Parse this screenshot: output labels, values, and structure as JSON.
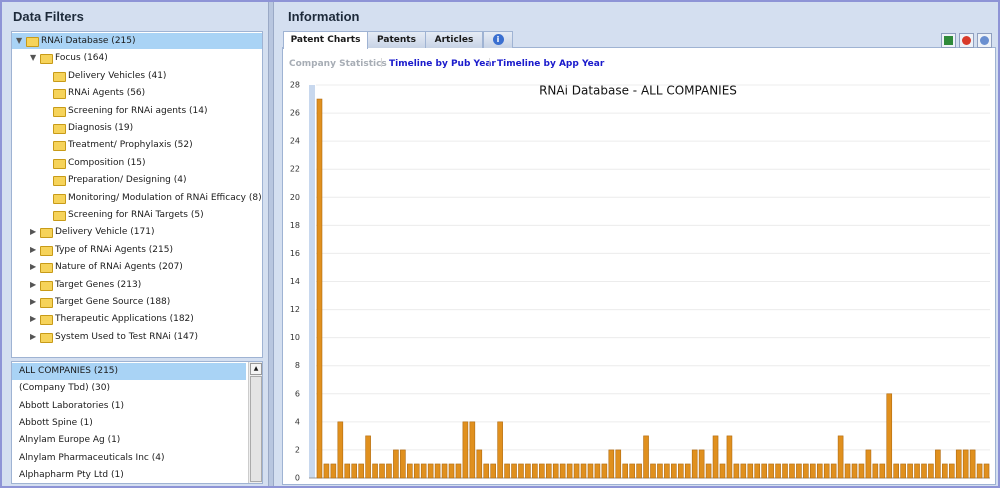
{
  "filters": {
    "title": "Data Filters",
    "tree": {
      "label": "RNAi Database (215)",
      "children": [
        {
          "label": "Focus (164)",
          "children": [
            {
              "label": "Delivery Vehicles (41)"
            },
            {
              "label": "RNAi Agents (56)"
            },
            {
              "label": "Screening for  RNAi agents (14)"
            },
            {
              "label": "Diagnosis (19)"
            },
            {
              "label": "Treatment/ Prophylaxis (52)"
            },
            {
              "label": "Composition (15)"
            },
            {
              "label": "Preparation/ Designing (4)"
            },
            {
              "label": "Monitoring/ Modulation of RNAi Efficacy (8)"
            },
            {
              "label": "Screening for RNAi Targets (5)"
            }
          ]
        },
        {
          "label": "Delivery Vehicle (171)",
          "expanded": false
        },
        {
          "label": "Type of RNAi Agents (215)",
          "expanded": false
        },
        {
          "label": "Nature of RNAi Agents (207)",
          "expanded": false
        },
        {
          "label": "Target Genes (213)",
          "expanded": false
        },
        {
          "label": "Target Gene Source (188)",
          "expanded": false
        },
        {
          "label": "Therapeutic Applications (182)",
          "expanded": false
        },
        {
          "label": "System Used to Test RNAi (147)",
          "expanded": false
        }
      ]
    },
    "companies": [
      "ALL COMPANIES (215)",
      "(Company Tbd) (30)",
      "Abbott Laboratories (1)",
      "Abbott Spine (1)",
      "Alnylam Europe Ag (1)",
      "Alnylam Pharmaceuticals Inc (4)",
      "Alphapharm Pty Ltd (1)"
    ]
  },
  "info": {
    "title": "Information",
    "tabs": [
      "Patent Charts",
      "Patents",
      "Articles"
    ],
    "links": [
      "Company Statistics",
      "Timeline by Pub Year",
      "Timeline by App Year"
    ]
  },
  "chart_data": {
    "type": "bar",
    "title": "RNAi Database - ALL COMPANIES",
    "color": "#e0901e",
    "grid": true,
    "categories": [
      null,
      null,
      null,
      null,
      null,
      null,
      null,
      null,
      null,
      null,
      null,
      null,
      null,
      null,
      null,
      null,
      null,
      null,
      null,
      null,
      null,
      null,
      null,
      null,
      null,
      null,
      null,
      null,
      null,
      null,
      null,
      null,
      null,
      null,
      null,
      null,
      null,
      null,
      null,
      null,
      null,
      null,
      null,
      null,
      null,
      null,
      null,
      null,
      null,
      null,
      null,
      null,
      null,
      null,
      null,
      null,
      null,
      null,
      null,
      null,
      null,
      null,
      null,
      null,
      null,
      null,
      null,
      null,
      null,
      null,
      null,
      null,
      null,
      null,
      null,
      null,
      null,
      null,
      null,
      null,
      null,
      null,
      null,
      null,
      null,
      null,
      null,
      null,
      null,
      null,
      null,
      null,
      null,
      null,
      null,
      null,
      null
    ],
    "values": [
      27,
      1,
      1,
      4,
      1,
      1,
      1,
      3,
      1,
      1,
      1,
      2,
      2,
      1,
      1,
      1,
      1,
      1,
      1,
      1,
      1,
      4,
      4,
      2,
      1,
      1,
      4,
      1,
      1,
      1,
      1,
      1,
      1,
      1,
      1,
      1,
      1,
      1,
      1,
      1,
      1,
      1,
      2,
      2,
      1,
      1,
      1,
      3,
      1,
      1,
      1,
      1,
      1,
      1,
      2,
      2,
      1,
      3,
      1,
      3,
      1,
      1,
      1,
      1,
      1,
      1,
      1,
      1,
      1,
      1,
      1,
      1,
      1,
      1,
      1,
      3,
      1,
      1,
      1,
      2,
      1,
      1,
      6,
      1,
      1,
      1,
      1,
      1,
      1,
      2,
      1,
      1,
      2,
      2,
      2,
      1,
      1
    ],
    "ylim": [
      0,
      28
    ],
    "yticks": [
      0,
      2,
      4,
      6,
      8,
      10,
      12,
      14,
      16,
      18,
      20,
      22,
      24,
      26,
      28
    ]
  }
}
